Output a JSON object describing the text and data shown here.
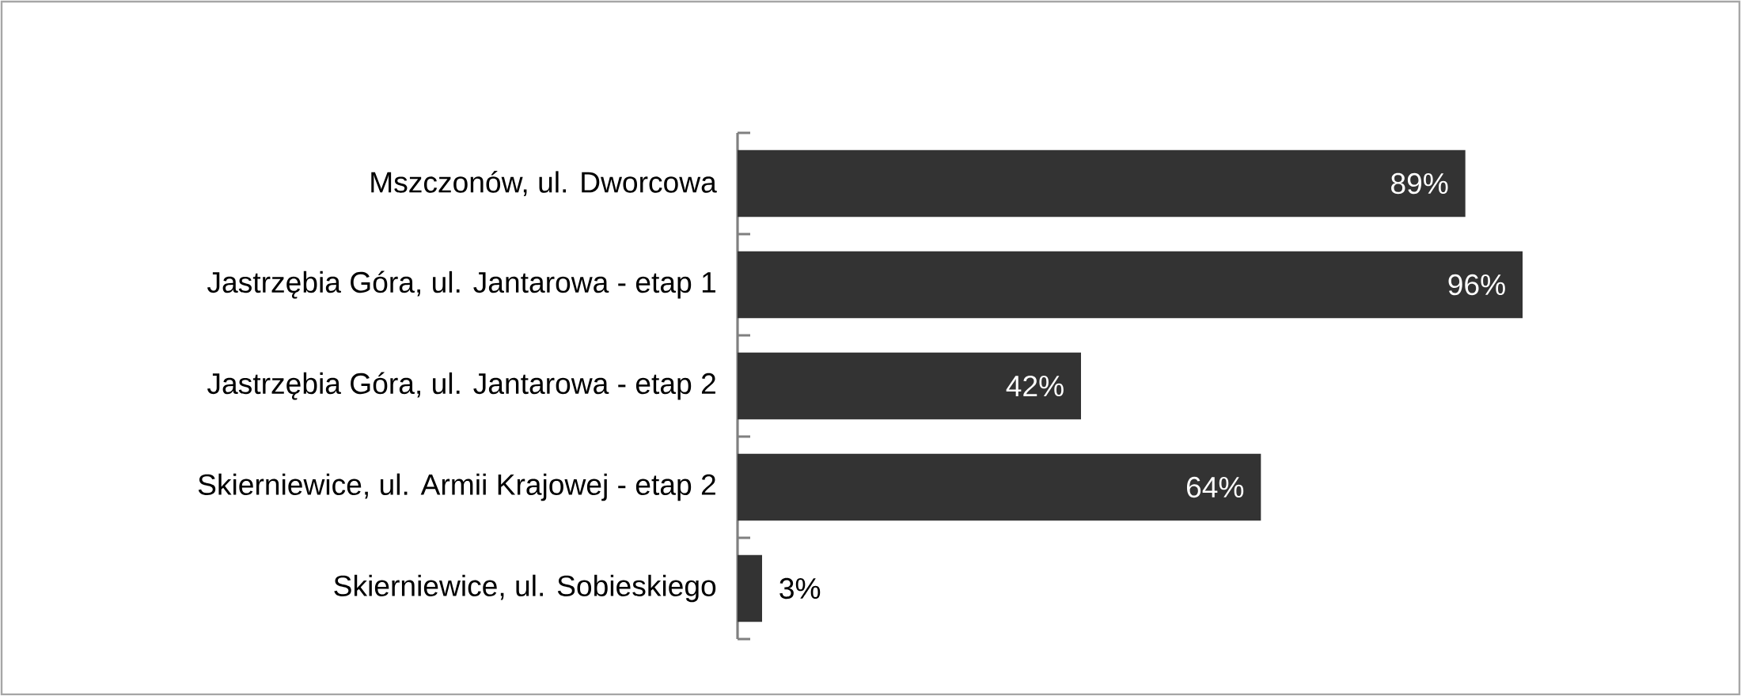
{
  "chart_data": {
    "type": "bar",
    "orientation": "horizontal",
    "categories": [
      "Mszczonów, ul. Dworcowa",
      "Jastrzębia Góra, ul. Jantarowa - etap 1",
      "Jastrzębia Góra, ul. Jantarowa - etap 2",
      "Skierniewice, ul. Armii Krajowej - etap 2",
      "Skierniewice, ul. Sobieskiego"
    ],
    "values": [
      89,
      96,
      42,
      64,
      3
    ],
    "value_labels": [
      "89%",
      "96%",
      "42%",
      "64%",
      "3%"
    ],
    "color": "#333333"
  }
}
